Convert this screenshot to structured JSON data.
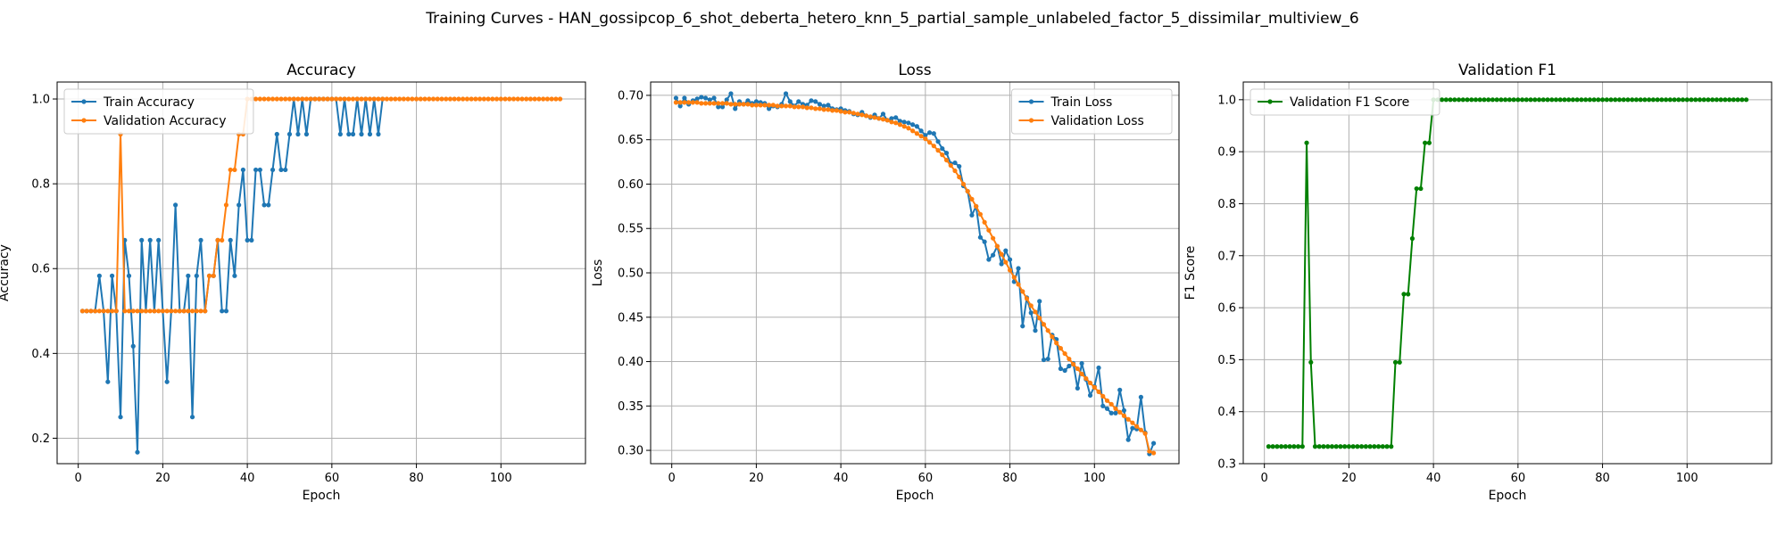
{
  "figure": {
    "suptitle": "Training Curves - HAN_gossipcop_6_shot_deberta_hetero_knn_5_partial_sample_unlabeled_factor_5_dissimilar_multiview_6"
  },
  "colors": {
    "train": "#1f77b4",
    "val": "#ff7f0e",
    "f1": "#008000",
    "grid": "#b0b0b0"
  },
  "chart_data": [
    {
      "type": "line",
      "title": "Accuracy",
      "xlabel": "Epoch",
      "ylabel": "Accuracy",
      "xlim": [
        -5,
        120
      ],
      "ylim": [
        0.14,
        1.04
      ],
      "xticks": [
        0,
        20,
        40,
        60,
        80,
        100
      ],
      "yticks": [
        0.2,
        0.4,
        0.6,
        0.8,
        1.0
      ],
      "ytick_labels": [
        "0.2",
        "0.4",
        "0.6",
        "0.8",
        "1.0"
      ],
      "grid": true,
      "legend": "upper-left",
      "series": [
        {
          "name": "Train Accuracy",
          "color": "#1f77b4",
          "x_start": 1,
          "values": [
            0.5,
            0.5,
            0.5,
            0.5,
            0.583,
            0.5,
            0.333,
            0.583,
            0.5,
            0.25,
            0.667,
            0.583,
            0.417,
            0.167,
            0.667,
            0.5,
            0.667,
            0.5,
            0.667,
            0.5,
            0.333,
            0.5,
            0.75,
            0.5,
            0.5,
            0.583,
            0.25,
            0.583,
            0.667,
            0.5,
            0.583,
            0.583,
            0.667,
            0.5,
            0.5,
            0.667,
            0.583,
            0.75,
            0.833,
            0.667,
            0.667,
            0.833,
            0.833,
            0.75,
            0.75,
            0.833,
            0.917,
            0.833,
            0.833,
            0.917,
            1.0,
            0.917,
            1.0,
            0.917,
            1.0,
            1.0,
            1.0,
            1.0,
            1.0,
            1.0,
            1.0,
            0.917,
            1.0,
            0.917,
            0.917,
            1.0,
            0.917,
            1.0,
            0.917,
            1.0,
            0.917,
            1.0
          ]
        },
        {
          "name": "Validation Accuracy",
          "color": "#ff7f0e",
          "x_start": 1,
          "values": [
            0.5,
            0.5,
            0.5,
            0.5,
            0.5,
            0.5,
            0.5,
            0.5,
            0.5,
            0.917,
            0.5,
            0.5,
            0.5,
            0.5,
            0.5,
            0.5,
            0.5,
            0.5,
            0.5,
            0.5,
            0.5,
            0.5,
            0.5,
            0.5,
            0.5,
            0.5,
            0.5,
            0.5,
            0.5,
            0.5,
            0.583,
            0.583,
            0.667,
            0.667,
            0.75,
            0.833,
            0.833,
            0.917,
            0.917,
            1.0,
            1.0,
            1.0,
            1.0,
            1.0,
            1.0,
            1.0,
            1.0,
            1.0,
            1.0,
            1.0,
            1.0,
            1.0,
            1.0,
            1.0,
            1.0,
            1.0,
            1.0,
            1.0,
            1.0,
            1.0,
            1.0,
            1.0,
            1.0,
            1.0,
            1.0,
            1.0,
            1.0,
            1.0,
            1.0,
            1.0,
            1.0,
            1.0,
            1.0,
            1.0,
            1.0,
            1.0,
            1.0,
            1.0,
            1.0,
            1.0,
            1.0,
            1.0,
            1.0,
            1.0,
            1.0,
            1.0,
            1.0,
            1.0,
            1.0,
            1.0,
            1.0,
            1.0,
            1.0,
            1.0,
            1.0,
            1.0,
            1.0,
            1.0,
            1.0,
            1.0,
            1.0,
            1.0,
            1.0,
            1.0,
            1.0,
            1.0,
            1.0,
            1.0,
            1.0,
            1.0,
            1.0,
            1.0,
            1.0,
            1.0
          ]
        }
      ]
    },
    {
      "type": "line",
      "title": "Loss",
      "xlabel": "Epoch",
      "ylabel": "Loss",
      "xlim": [
        -5,
        120
      ],
      "ylim": [
        0.285,
        0.715
      ],
      "xticks": [
        0,
        20,
        40,
        60,
        80,
        100
      ],
      "yticks": [
        0.3,
        0.35,
        0.4,
        0.45,
        0.5,
        0.55,
        0.6,
        0.65,
        0.7
      ],
      "ytick_labels": [
        "0.30",
        "0.35",
        "0.40",
        "0.45",
        "0.50",
        "0.55",
        "0.60",
        "0.65",
        "0.70"
      ],
      "grid": true,
      "legend": "upper-right",
      "series": [
        {
          "name": "Train Loss",
          "color": "#1f77b4",
          "x_start": 1,
          "values": [
            0.697,
            0.688,
            0.697,
            0.69,
            0.694,
            0.696,
            0.698,
            0.697,
            0.695,
            0.697,
            0.687,
            0.687,
            0.695,
            0.702,
            0.685,
            0.693,
            0.69,
            0.694,
            0.691,
            0.693,
            0.692,
            0.691,
            0.685,
            0.688,
            0.687,
            0.69,
            0.702,
            0.693,
            0.688,
            0.693,
            0.69,
            0.689,
            0.694,
            0.693,
            0.69,
            0.688,
            0.689,
            0.685,
            0.684,
            0.685,
            0.683,
            0.682,
            0.679,
            0.678,
            0.681,
            0.677,
            0.675,
            0.678,
            0.674,
            0.679,
            0.672,
            0.674,
            0.675,
            0.671,
            0.67,
            0.669,
            0.667,
            0.665,
            0.66,
            0.655,
            0.658,
            0.657,
            0.648,
            0.64,
            0.635,
            0.623,
            0.624,
            0.62,
            0.598,
            0.592,
            0.565,
            0.575,
            0.54,
            0.535,
            0.515,
            0.52,
            0.53,
            0.51,
            0.525,
            0.515,
            0.49,
            0.505,
            0.44,
            0.472,
            0.455,
            0.435,
            0.468,
            0.402,
            0.403,
            0.43,
            0.425,
            0.392,
            0.39,
            0.395,
            0.398,
            0.37,
            0.398,
            0.38,
            0.362,
            0.372,
            0.393,
            0.35,
            0.347,
            0.342,
            0.342,
            0.368,
            0.345,
            0.312,
            0.325,
            0.324,
            0.36,
            0.32,
            0.296,
            0.308
          ]
        },
        {
          "name": "Validation Loss",
          "color": "#ff7f0e",
          "x_start": 1,
          "values": [
            0.692,
            0.692,
            0.692,
            0.692,
            0.692,
            0.692,
            0.691,
            0.691,
            0.691,
            0.691,
            0.691,
            0.691,
            0.691,
            0.69,
            0.69,
            0.69,
            0.69,
            0.69,
            0.689,
            0.689,
            0.689,
            0.689,
            0.689,
            0.689,
            0.688,
            0.688,
            0.688,
            0.688,
            0.687,
            0.687,
            0.687,
            0.686,
            0.686,
            0.685,
            0.685,
            0.684,
            0.684,
            0.683,
            0.683,
            0.682,
            0.681,
            0.681,
            0.68,
            0.679,
            0.678,
            0.677,
            0.676,
            0.675,
            0.674,
            0.673,
            0.672,
            0.67,
            0.669,
            0.667,
            0.665,
            0.663,
            0.66,
            0.657,
            0.654,
            0.651,
            0.647,
            0.643,
            0.638,
            0.633,
            0.627,
            0.621,
            0.615,
            0.608,
            0.6,
            0.592,
            0.583,
            0.575,
            0.566,
            0.557,
            0.548,
            0.539,
            0.53,
            0.521,
            0.512,
            0.503,
            0.495,
            0.487,
            0.479,
            0.471,
            0.463,
            0.456,
            0.449,
            0.442,
            0.435,
            0.428,
            0.421,
            0.415,
            0.409,
            0.403,
            0.397,
            0.392,
            0.386,
            0.381,
            0.376,
            0.371,
            0.366,
            0.361,
            0.356,
            0.352,
            0.347,
            0.343,
            0.339,
            0.335,
            0.331,
            0.327,
            0.323,
            0.319,
            0.299,
            0.297
          ]
        }
      ]
    },
    {
      "type": "line",
      "title": "Validation F1",
      "xlabel": "Epoch",
      "ylabel": "F1 Score",
      "xlim": [
        -5,
        120
      ],
      "ylim": [
        0.3,
        1.034
      ],
      "xticks": [
        0,
        20,
        40,
        60,
        80,
        100
      ],
      "yticks": [
        0.3,
        0.4,
        0.5,
        0.6,
        0.7,
        0.8,
        0.9,
        1.0
      ],
      "ytick_labels": [
        "0.3",
        "0.4",
        "0.5",
        "0.6",
        "0.7",
        "0.8",
        "0.9",
        "1.0"
      ],
      "grid": true,
      "legend": "upper-left",
      "series": [
        {
          "name": "Validation F1 Score",
          "color": "#008000",
          "x_start": 1,
          "values": [
            0.333,
            0.333,
            0.333,
            0.333,
            0.333,
            0.333,
            0.333,
            0.333,
            0.333,
            0.917,
            0.495,
            0.333,
            0.333,
            0.333,
            0.333,
            0.333,
            0.333,
            0.333,
            0.333,
            0.333,
            0.333,
            0.333,
            0.333,
            0.333,
            0.333,
            0.333,
            0.333,
            0.333,
            0.333,
            0.333,
            0.495,
            0.495,
            0.626,
            0.626,
            0.733,
            0.829,
            0.829,
            0.917,
            0.917,
            1.0,
            1.0,
            1.0,
            1.0,
            1.0,
            1.0,
            1.0,
            1.0,
            1.0,
            1.0,
            1.0,
            1.0,
            1.0,
            1.0,
            1.0,
            1.0,
            1.0,
            1.0,
            1.0,
            1.0,
            1.0,
            1.0,
            1.0,
            1.0,
            1.0,
            1.0,
            1.0,
            1.0,
            1.0,
            1.0,
            1.0,
            1.0,
            1.0,
            1.0,
            1.0,
            1.0,
            1.0,
            1.0,
            1.0,
            1.0,
            1.0,
            1.0,
            1.0,
            1.0,
            1.0,
            1.0,
            1.0,
            1.0,
            1.0,
            1.0,
            1.0,
            1.0,
            1.0,
            1.0,
            1.0,
            1.0,
            1.0,
            1.0,
            1.0,
            1.0,
            1.0,
            1.0,
            1.0,
            1.0,
            1.0,
            1.0,
            1.0,
            1.0,
            1.0,
            1.0,
            1.0,
            1.0,
            1.0,
            1.0,
            1.0
          ]
        }
      ]
    }
  ]
}
